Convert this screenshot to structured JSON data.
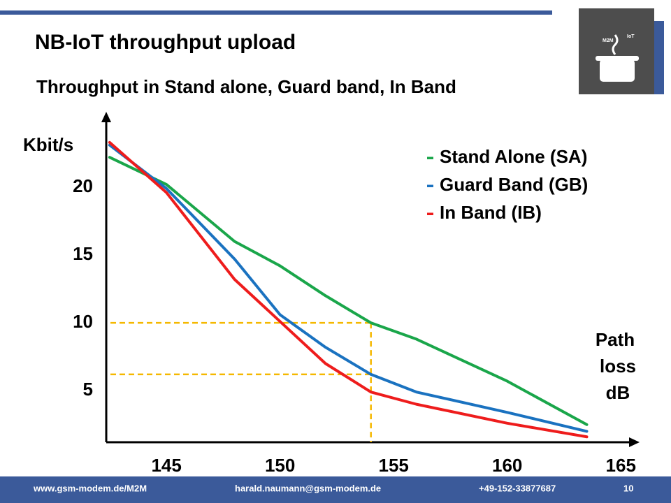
{
  "header": {
    "title": "NB-IoT throughput upload",
    "subtitle": "Throughput in Stand alone, Guard band, In Band",
    "logo": [
      "M2M",
      "IoT"
    ]
  },
  "chart_data": {
    "type": "line",
    "y_label": "Kbit/s",
    "x_label_lines": [
      "Path",
      "loss",
      "dB"
    ],
    "x": [
      142.5,
      145,
      148,
      150,
      152,
      154,
      156,
      160,
      163.5
    ],
    "series": [
      {
        "name": "Stand Alone (SA)",
        "color": "#1aa64a",
        "values": [
          22.2,
          20.2,
          16.0,
          14.2,
          12.0,
          10.0,
          8.8,
          5.7,
          2.5
        ]
      },
      {
        "name": "Guard Band (GB)",
        "color": "#1a72c0",
        "values": [
          23.1,
          19.9,
          14.7,
          10.6,
          8.2,
          6.2,
          4.9,
          3.4,
          2.0
        ]
      },
      {
        "name": "In Band (IB)",
        "color": "#ee1c1c",
        "values": [
          23.3,
          19.6,
          13.2,
          10.1,
          7.0,
          4.9,
          4.0,
          2.6,
          1.6
        ]
      }
    ],
    "xlim": [
      142.35,
      165.7
    ],
    "xticks": [
      145,
      150,
      155,
      160,
      165
    ],
    "ylim": [
      1.2,
      25.3
    ],
    "yticks": [
      5,
      10,
      15,
      20
    ],
    "guides": {
      "x": 154,
      "y": [
        10,
        6.2
      ],
      "color": "#f5b800"
    }
  },
  "footer": {
    "website": "www.gsm-modem.de/M2M",
    "email": "harald.naumann@gsm-modem.de",
    "phone": "+49-152-33877687",
    "page": "10"
  }
}
